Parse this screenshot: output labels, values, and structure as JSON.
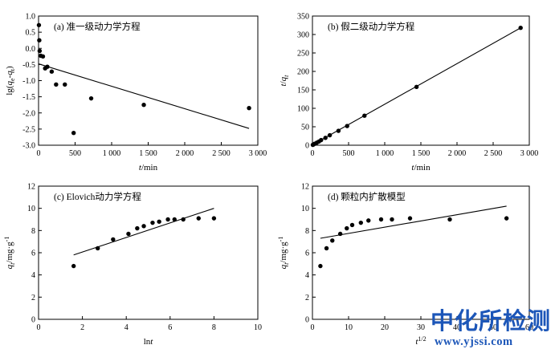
{
  "chart_data": [
    {
      "type": "scatter",
      "title": "(a) 准一级动力学方程",
      "xlabel": "t/min",
      "ylabel": "lg(qe-qt)",
      "xlim": [
        0,
        3000
      ],
      "ylim": [
        -3.0,
        1.0
      ],
      "xticks": [
        0,
        500,
        1000,
        1500,
        2000,
        2500,
        3000
      ],
      "xtick_labels": [
        "0",
        "500",
        "1 000",
        "1 500",
        "2 000",
        "2 500",
        "3 000"
      ],
      "yticks": [
        -3.0,
        -2.5,
        -2.0,
        -1.5,
        -1.0,
        -0.5,
        0.0,
        0.5,
        1.0
      ],
      "ytick_labels": [
        "-3.0",
        "-2.5",
        "-2.0",
        "-1.5",
        "-1.0",
        "-0.5",
        "0.0",
        "0.5",
        "1.0"
      ],
      "points": [
        [
          5,
          0.72
        ],
        [
          10,
          0.25
        ],
        [
          15,
          -0.08
        ],
        [
          30,
          -0.23
        ],
        [
          60,
          -0.25
        ],
        [
          90,
          -0.62
        ],
        [
          120,
          -0.57
        ],
        [
          180,
          -0.72
        ],
        [
          240,
          -1.12
        ],
        [
          360,
          -1.12
        ],
        [
          480,
          -2.62
        ],
        [
          720,
          -1.55
        ],
        [
          1440,
          -1.75
        ],
        [
          2880,
          -1.85
        ]
      ],
      "fit_line": [
        [
          0,
          -0.48
        ],
        [
          2880,
          -2.48
        ]
      ],
      "grid": false
    },
    {
      "type": "scatter",
      "title": "(b) 假二级动力学方程",
      "xlabel": "t/min",
      "ylabel": "t/qt",
      "xlim": [
        0,
        3000
      ],
      "ylim": [
        0,
        350
      ],
      "xticks": [
        0,
        500,
        1000,
        1500,
        2000,
        2500,
        3000
      ],
      "xtick_labels": [
        "0",
        "500",
        "1 000",
        "1 500",
        "2 000",
        "2 500",
        "3 000"
      ],
      "yticks": [
        0,
        50,
        100,
        150,
        200,
        250,
        300,
        350
      ],
      "ytick_labels": [
        "0",
        "50",
        "100",
        "150",
        "200",
        "250",
        "300",
        "350"
      ],
      "points": [
        [
          5,
          1
        ],
        [
          15,
          2
        ],
        [
          30,
          4
        ],
        [
          60,
          7
        ],
        [
          90,
          10
        ],
        [
          120,
          14
        ],
        [
          180,
          20
        ],
        [
          240,
          27
        ],
        [
          360,
          39
        ],
        [
          480,
          52
        ],
        [
          720,
          80
        ],
        [
          1440,
          158
        ],
        [
          2880,
          318
        ]
      ],
      "fit_line": [
        [
          0,
          1
        ],
        [
          2880,
          318
        ]
      ],
      "grid": false
    },
    {
      "type": "scatter",
      "title": "(c) Elovich动力学方程",
      "xlabel": "lnt",
      "ylabel": "qt/mg·g-1",
      "xlim": [
        0,
        10
      ],
      "ylim": [
        0,
        12
      ],
      "xticks": [
        0,
        2,
        4,
        6,
        8,
        10
      ],
      "xtick_labels": [
        "0",
        "2",
        "4",
        "6",
        "8",
        "10"
      ],
      "yticks": [
        0,
        2,
        4,
        6,
        8,
        10,
        12
      ],
      "ytick_labels": [
        "0",
        "2",
        "4",
        "6",
        "8",
        "10",
        "12"
      ],
      "points": [
        [
          1.6,
          4.8
        ],
        [
          2.7,
          6.4
        ],
        [
          3.4,
          7.2
        ],
        [
          4.1,
          7.7
        ],
        [
          4.5,
          8.2
        ],
        [
          4.8,
          8.4
        ],
        [
          5.2,
          8.7
        ],
        [
          5.5,
          8.8
        ],
        [
          5.9,
          9.0
        ],
        [
          6.2,
          9.0
        ],
        [
          6.6,
          9.0
        ],
        [
          7.3,
          9.1
        ],
        [
          8.0,
          9.1
        ]
      ],
      "fit_line": [
        [
          1.6,
          5.8
        ],
        [
          8.0,
          10.0
        ]
      ],
      "grid": false
    },
    {
      "type": "scatter",
      "title": "(d) 颗粒内扩散模型",
      "xlabel": "t1/2",
      "ylabel": "qt/mg·g-1",
      "xlim": [
        0,
        60
      ],
      "ylim": [
        0,
        12
      ],
      "xticks": [
        0,
        10,
        20,
        30,
        40,
        50,
        60
      ],
      "xtick_labels": [
        "0",
        "10",
        "20",
        "30",
        "40",
        "50",
        "60"
      ],
      "yticks": [
        0,
        2,
        4,
        6,
        8,
        10,
        12
      ],
      "ytick_labels": [
        "0",
        "2",
        "4",
        "6",
        "8",
        "10",
        "12"
      ],
      "points": [
        [
          2.2,
          4.8
        ],
        [
          3.9,
          6.4
        ],
        [
          5.5,
          7.1
        ],
        [
          7.7,
          7.7
        ],
        [
          9.5,
          8.2
        ],
        [
          11.0,
          8.5
        ],
        [
          13.4,
          8.7
        ],
        [
          15.5,
          8.9
        ],
        [
          19.0,
          9.0
        ],
        [
          22.0,
          9.0
        ],
        [
          27.0,
          9.1
        ],
        [
          38.0,
          9.0
        ],
        [
          53.7,
          9.1
        ]
      ],
      "fit_line": [
        [
          2.2,
          7.3
        ],
        [
          53.7,
          10.2
        ]
      ],
      "grid": false
    }
  ],
  "watermark": {
    "title": "中化所检测",
    "url": "www.yjssi.com",
    "color": "#1c56b8"
  }
}
